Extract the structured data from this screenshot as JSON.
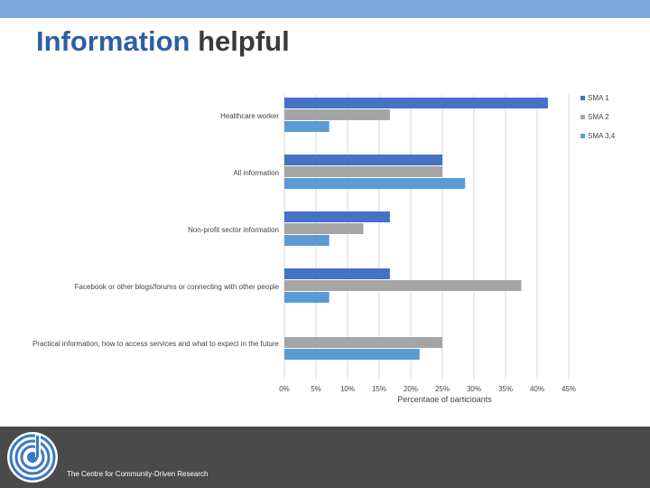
{
  "title": {
    "word1": "Information",
    "word2": "helpful"
  },
  "footer": {
    "org_name": "The Centre for Community-Driven Research"
  },
  "colors": {
    "series_1": "#4472c4",
    "series_2": "#a5a5a5",
    "series_3": "#5b9bd5",
    "title_accent": "#2e5fa3",
    "top_bar": "#7fa9dc",
    "footer_bg": "#4a4a4a"
  },
  "icons": {
    "logo": "circular-logo-icon"
  },
  "chart_data": {
    "type": "bar",
    "orientation": "horizontal",
    "categories": [
      "Healthcare worker",
      "All information",
      "Non-profit sector information",
      "Facebook or other blogs/forums or connecting with other people",
      "Practical information, how to access services and what to expect in the future"
    ],
    "series": [
      {
        "name": "SMA 1",
        "values": [
          41.7,
          25,
          16.7,
          16.7,
          0
        ]
      },
      {
        "name": "SMA 2",
        "values": [
          16.7,
          25,
          12.5,
          37.5,
          25
        ]
      },
      {
        "name": "SMA 3,4",
        "values": [
          7.1,
          28.6,
          7.1,
          7.1,
          21.4
        ]
      }
    ],
    "xlabel": "Percentage of participants",
    "xlim": [
      0,
      45
    ],
    "xticks": [
      "0%",
      "5%",
      "10%",
      "15%",
      "20%",
      "25%",
      "30%",
      "35%",
      "40%",
      "45%"
    ],
    "grid": true,
    "legend_position": "top-right"
  }
}
